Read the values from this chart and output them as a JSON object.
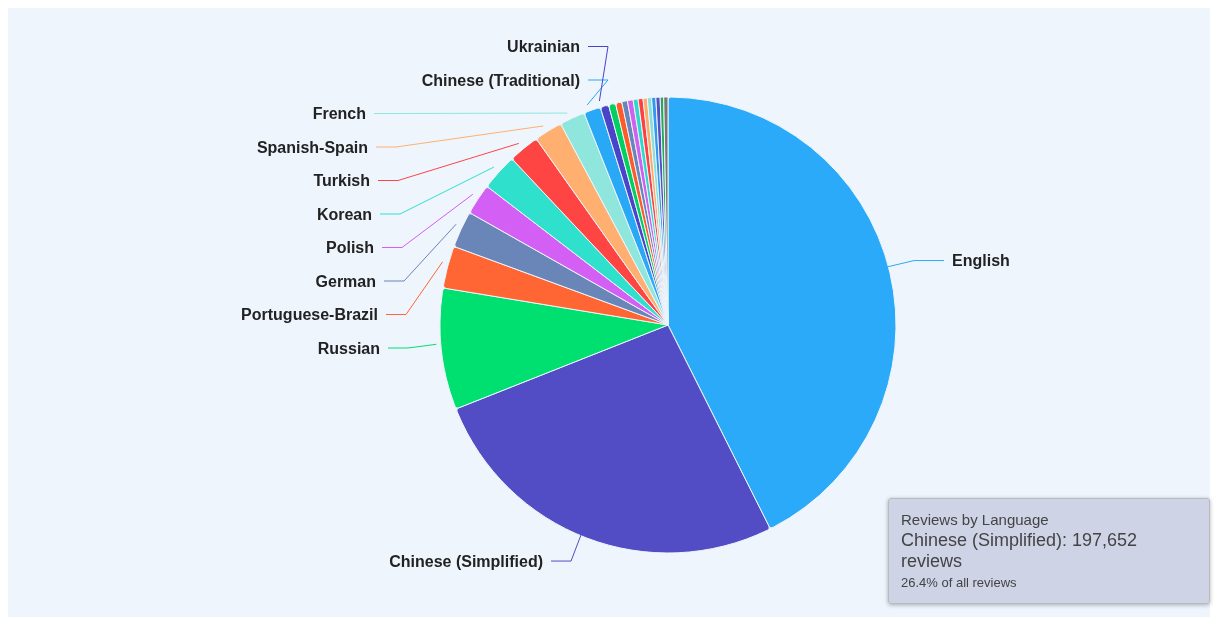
{
  "chart_data": {
    "type": "pie",
    "categories": [
      "English",
      "Chinese (Simplified)",
      "Russian",
      "Portuguese-Brazil",
      "German",
      "Polish",
      "Korean",
      "Turkish",
      "Spanish-Spain",
      "French",
      "Chinese (Traditional)",
      "Ukrainian",
      null,
      null,
      null,
      null,
      null,
      null,
      null,
      null,
      null,
      null,
      null,
      null
    ],
    "values": [
      42.6,
      26.4,
      8.6,
      3.0,
      2.6,
      2.2,
      2.6,
      2.2,
      2.0,
      1.8,
      1.2,
      0.6,
      0.5,
      0.45,
      0.4,
      0.4,
      0.35,
      0.35,
      0.3,
      0.3,
      0.3,
      0.3,
      0.25,
      0.3
    ],
    "colors": [
      "#2baafa",
      "#524dc5",
      "#00e070",
      "#ff6633",
      "#6a85b8",
      "#d45ff5",
      "#2fe0cc",
      "#ff4444",
      "#ffb070",
      "#8ee6dc",
      "#29a8f5",
      "#4a45c8",
      "#00d060",
      "#ff5a2a",
      "#6a85b8",
      "#d060f0",
      "#30d8c8",
      "#ff4040",
      "#ffaa66",
      "#88e0d8",
      "#3399ee",
      "#5550c0",
      "#22aa55",
      "#777777"
    ],
    "annotations": [
      "Reviews by Language",
      "Chinese (Simplified): 197,652 reviews",
      "26.4% of all reviews"
    ]
  }
}
